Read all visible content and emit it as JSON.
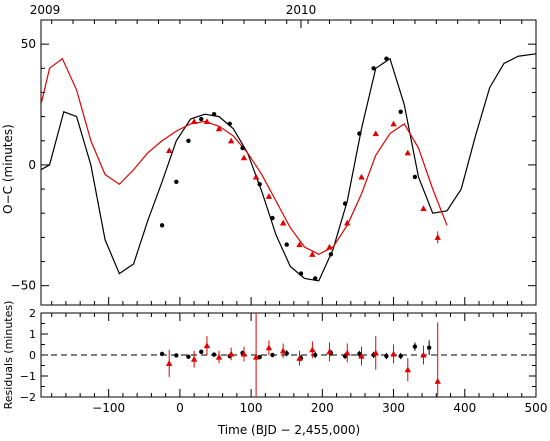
{
  "chart_data": {
    "type": "scatter",
    "colors": {
      "black": "#000000",
      "red": "#e00000"
    },
    "x_axis": {
      "label": "Time (BJD − 2,455,000)",
      "range": [
        -195,
        500
      ],
      "ticks": [
        -100,
        0,
        100,
        200,
        300,
        400,
        500
      ]
    },
    "top_axis": {
      "ticks": [
        {
          "label": "2009",
          "x": -195
        },
        {
          "label": "2010",
          "x": 170
        }
      ]
    },
    "oc_panel": {
      "ylabel": "O−C (minutes)",
      "range": [
        -58,
        60
      ],
      "ticks": [
        -50,
        0,
        50
      ],
      "black_model": {
        "x": [
          -195,
          -183,
          -163,
          -145,
          -125,
          -105,
          -85,
          -65,
          -45,
          -25,
          -5,
          15,
          35,
          55,
          75,
          95,
          115,
          135,
          155,
          175,
          195,
          215,
          235,
          255,
          275,
          295,
          315,
          335,
          355,
          375,
          395,
          415,
          435,
          455,
          475,
          500
        ],
        "y": [
          -2,
          0,
          22,
          20,
          0,
          -31,
          -45,
          -41,
          -23,
          -7,
          10,
          19,
          21,
          20,
          15,
          5,
          -11,
          -29,
          -42,
          -47,
          -48,
          -35,
          -15,
          15,
          40,
          44,
          25,
          -5,
          -20,
          -19,
          -10,
          12,
          32,
          42,
          45,
          46
        ]
      },
      "red_model": {
        "x": [
          -195,
          -183,
          -165,
          -145,
          -125,
          -105,
          -85,
          -65,
          -45,
          -25,
          -5,
          15,
          35,
          55,
          75,
          95,
          115,
          135,
          155,
          175,
          195,
          215,
          235,
          255,
          275,
          295,
          315,
          335,
          355,
          375
        ],
        "y": [
          25,
          40,
          44,
          31,
          10,
          -4,
          -8,
          -2,
          5,
          10,
          14,
          17,
          18,
          16,
          12,
          5,
          -4,
          -15,
          -26,
          -34,
          -37,
          -34,
          -25,
          -12,
          4,
          13,
          17,
          7,
          -10,
          -25
        ]
      },
      "black_points": {
        "x": [
          -25,
          -5,
          12,
          30,
          48,
          70,
          88,
          112,
          130,
          150,
          170,
          190,
          212,
          232,
          252,
          272,
          290,
          310,
          330
        ],
        "y": [
          -25,
          -7,
          10,
          19,
          21,
          17,
          7,
          -8,
          -22,
          -33,
          -45,
          -47,
          -37,
          -16,
          13,
          40,
          44,
          22,
          -5
        ]
      },
      "red_points": {
        "x": [
          -15,
          20,
          38,
          55,
          72,
          90,
          107,
          125,
          145,
          168,
          186,
          210,
          235,
          255,
          275,
          300,
          320,
          342,
          362
        ],
        "y": [
          6,
          18,
          18,
          15,
          10,
          3,
          -5,
          -13,
          -24,
          -33,
          -37,
          -34,
          -24,
          -5,
          13,
          17,
          5,
          -18,
          -30
        ]
      }
    },
    "residual_panel": {
      "ylabel": "Residuals (minutes)",
      "range": [
        -2,
        2
      ],
      "ticks": [
        -2,
        -1,
        0,
        1,
        2
      ],
      "zero_line": 0,
      "black_points": {
        "x": [
          -25,
          -5,
          12,
          30,
          48,
          70,
          88,
          112,
          130,
          150,
          170,
          190,
          212,
          232,
          252,
          272,
          290,
          310,
          330,
          350
        ],
        "y": [
          0.05,
          -0.02,
          -0.08,
          0.15,
          0.02,
          -0.05,
          0.1,
          -0.1,
          0.0,
          0.08,
          -0.15,
          0.0,
          0.1,
          -0.05,
          0.05,
          0.0,
          -0.05,
          -0.05,
          0.4,
          0.35
        ],
        "err": [
          0.1,
          0.1,
          0.1,
          0.1,
          0.1,
          0.1,
          0.1,
          0.1,
          0.1,
          0.15,
          0.15,
          0.15,
          0.15,
          0.15,
          0.15,
          0.15,
          0.15,
          0.15,
          0.2,
          0.35
        ]
      },
      "red_points": {
        "x": [
          -15,
          20,
          38,
          55,
          72,
          90,
          107,
          125,
          145,
          168,
          186,
          210,
          235,
          255,
          275,
          300,
          320,
          342,
          362
        ],
        "y": [
          -0.4,
          -0.2,
          0.45,
          -0.1,
          0.05,
          0.05,
          -0.1,
          0.35,
          0.2,
          -0.15,
          0.25,
          0.15,
          0.1,
          -0.05,
          0.1,
          0.05,
          -0.7,
          0.0,
          -1.25
        ],
        "err": [
          0.65,
          0.4,
          0.45,
          0.3,
          0.3,
          0.35,
          3.0,
          0.35,
          0.35,
          0.35,
          0.4,
          0.45,
          0.45,
          0.45,
          0.8,
          0.45,
          0.55,
          0.45,
          2.8
        ]
      }
    }
  }
}
